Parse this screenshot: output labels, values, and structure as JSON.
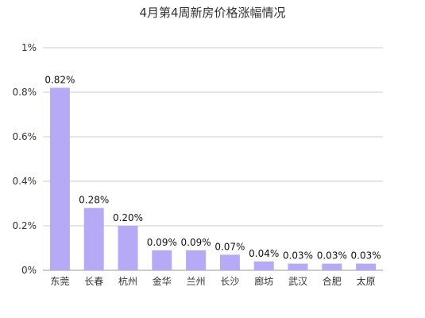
{
  "chart_data": {
    "type": "bar",
    "title": "4月第4周新房价格涨幅情况",
    "xlabel": "",
    "ylabel": "",
    "categories": [
      "东莞",
      "长春",
      "杭州",
      "金华",
      "兰州",
      "长沙",
      "廊坊",
      "武汉",
      "合肥",
      "太原"
    ],
    "values": [
      0.82,
      0.28,
      0.2,
      0.09,
      0.09,
      0.07,
      0.04,
      0.03,
      0.03,
      0.03
    ],
    "value_labels": [
      "0.82%",
      "0.28%",
      "0.20%",
      "0.09%",
      "0.09%",
      "0.07%",
      "0.04%",
      "0.03%",
      "0.03%",
      "0.03%"
    ],
    "y_ticks": [
      0,
      0.2,
      0.4,
      0.6,
      0.8,
      1
    ],
    "y_tick_labels": [
      "0%",
      "0.2%",
      "0.4%",
      "0.6%",
      "0.8%",
      "1%"
    ],
    "ylim": [
      0,
      1
    ],
    "grid": true,
    "bar_color": "#b6aaf7"
  }
}
